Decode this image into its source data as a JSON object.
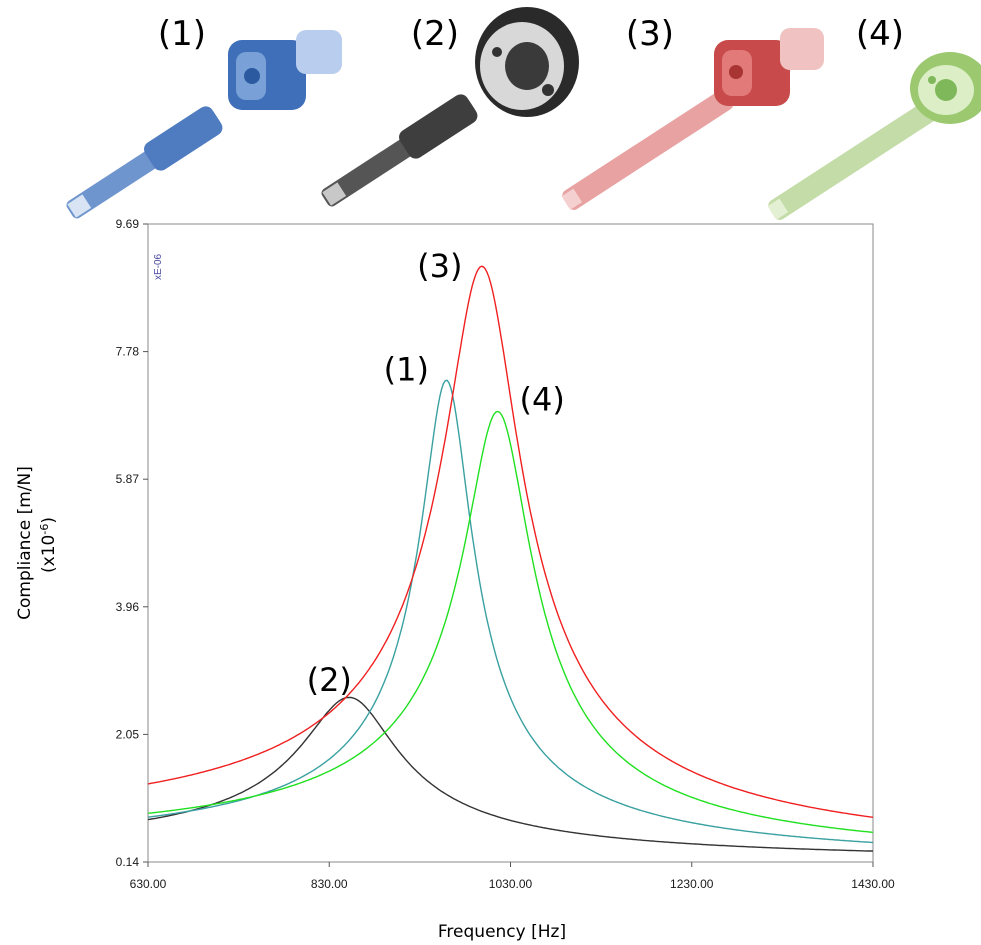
{
  "tools": [
    {
      "label": "(1)",
      "color": "#5b86c4",
      "accent": "#3f6fb8"
    },
    {
      "label": "(2)",
      "color": "#4a4a4a",
      "accent": "#8a8a8a"
    },
    {
      "label": "(3)",
      "color": "#e08a8a",
      "accent": "#c84a4a"
    },
    {
      "label": "(4)",
      "color": "#b9d69a",
      "accent": "#7fb85a"
    }
  ],
  "chart_data": {
    "type": "line",
    "xlabel": "Frequency [Hz]",
    "ylabel": "Compliance [m/N]",
    "ylabel_sub": "(x10",
    "ylabel_sup": "-6",
    "ylabel_close": ")",
    "y_exponent_label": "xE-06",
    "xlim": [
      630,
      1430
    ],
    "ylim": [
      0.14,
      9.69
    ],
    "x_ticks": [
      "630.00",
      "830.00",
      "1030.00",
      "1230.00",
      "1430.00"
    ],
    "y_ticks": [
      "0.14",
      "2.05",
      "3.96",
      "5.87",
      "7.78",
      "9.69"
    ],
    "grid": false,
    "series": [
      {
        "name": "(2)",
        "color": "#333333",
        "peak_freq": 855,
        "peak_value": 2.6,
        "damping": 0.06,
        "floor": 0.14,
        "label_x": 830,
        "label_y": 2.7
      },
      {
        "name": "(1)",
        "color": "#3aa0a0",
        "peak_freq": 960,
        "peak_value": 7.35,
        "damping": 0.028,
        "floor": 0.1,
        "label_x": 915,
        "label_y": 7.35
      },
      {
        "name": "(3)",
        "color": "#f02020",
        "peak_freq": 1000,
        "peak_value": 9.05,
        "damping": 0.04,
        "floor": 0.13,
        "label_x": 952,
        "label_y": 8.9
      },
      {
        "name": "(4)",
        "color": "#20e020",
        "peak_freq": 1017,
        "peak_value": 6.88,
        "damping": 0.035,
        "floor": 0.1,
        "label_x": 1065,
        "label_y": 6.9
      }
    ]
  }
}
